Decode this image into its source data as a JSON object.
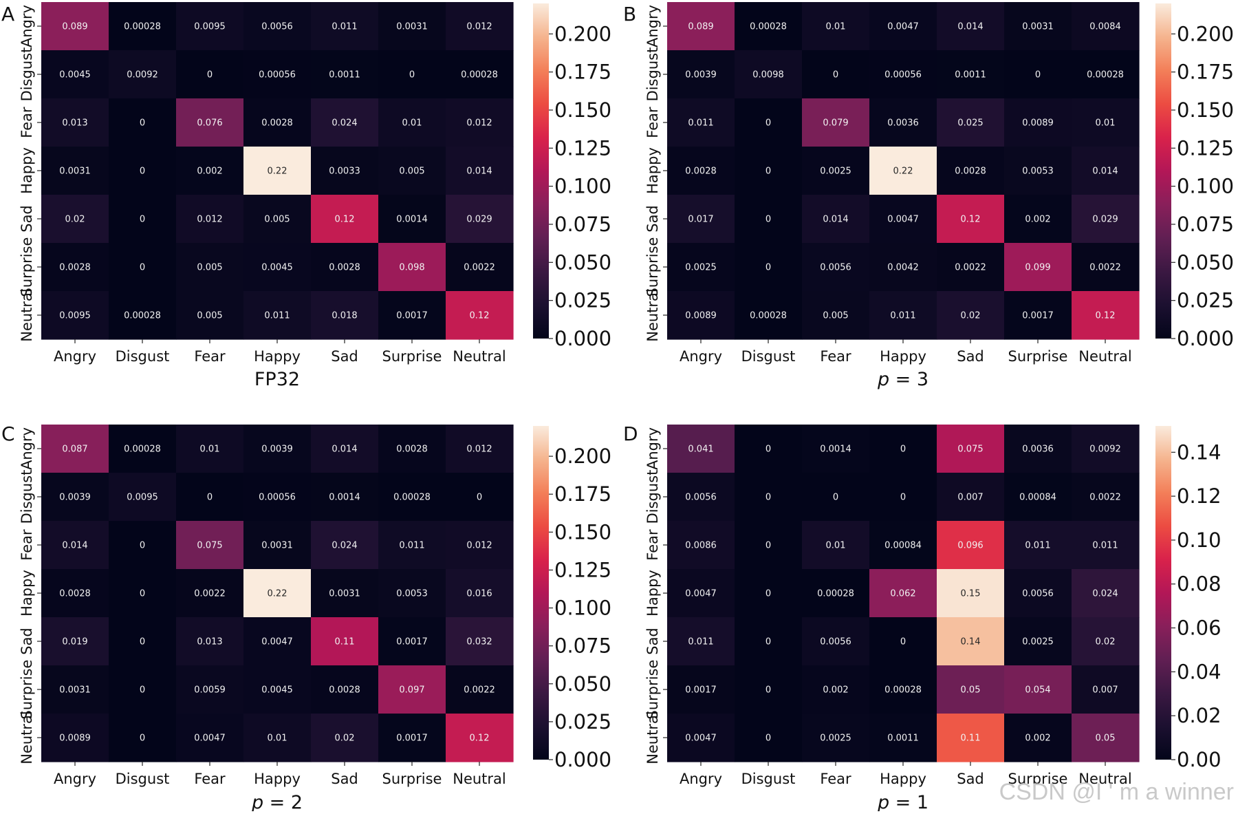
{
  "watermark": "CSDN @I ' m a winner",
  "chart_data": [
    {
      "panel": "A",
      "type": "heatmap",
      "title": "FP32",
      "xlabels": [
        "Angry",
        "Disgust",
        "Fear",
        "Happy",
        "Sad",
        "Surprise",
        "Neutral"
      ],
      "ylabels": [
        "Angry",
        "Disgust",
        "Fear",
        "Happy",
        "Sad",
        "Surprise",
        "Neutral"
      ],
      "values": [
        [
          0.089,
          0.00028,
          0.0095,
          0.0056,
          0.011,
          0.0031,
          0.012
        ],
        [
          0.0045,
          0.0092,
          0,
          0.00056,
          0.0011,
          0,
          0.00028
        ],
        [
          0.013,
          0,
          0.076,
          0.0028,
          0.024,
          0.01,
          0.012
        ],
        [
          0.0031,
          0,
          0.002,
          0.22,
          0.0033,
          0.005,
          0.014
        ],
        [
          0.02,
          0,
          0.012,
          0.005,
          0.12,
          0.0014,
          0.029
        ],
        [
          0.0028,
          0,
          0.005,
          0.0045,
          0.0028,
          0.098,
          0.0022
        ],
        [
          0.0095,
          0.00028,
          0.005,
          0.011,
          0.018,
          0.0017,
          0.12
        ]
      ],
      "labels": [
        [
          "0.089",
          "0.00028",
          "0.0095",
          "0.0056",
          "0.011",
          "0.0031",
          "0.012"
        ],
        [
          "0.0045",
          "0.0092",
          "0",
          "0.00056",
          "0.0011",
          "0",
          "0.00028"
        ],
        [
          "0.013",
          "0",
          "0.076",
          "0.0028",
          "0.024",
          "0.01",
          "0.012"
        ],
        [
          "0.0031",
          "0",
          "0.002",
          "0.22",
          "0.0033",
          "0.005",
          "0.014"
        ],
        [
          "0.02",
          "0",
          "0.012",
          "0.005",
          "0.12",
          "0.0014",
          "0.029"
        ],
        [
          "0.0028",
          "0",
          "0.005",
          "0.0045",
          "0.0028",
          "0.098",
          "0.0022"
        ],
        [
          "0.0095",
          "0.00028",
          "0.005",
          "0.011",
          "0.018",
          "0.0017",
          "0.12"
        ]
      ],
      "vmax": 0.22,
      "colorbar_ticks": [
        "0.000",
        "0.025",
        "0.050",
        "0.075",
        "0.100",
        "0.125",
        "0.150",
        "0.175",
        "0.200"
      ],
      "colorbar_tick_values": [
        0,
        0.025,
        0.05,
        0.075,
        0.1,
        0.125,
        0.15,
        0.175,
        0.2
      ]
    },
    {
      "panel": "B",
      "type": "heatmap",
      "title": "p = 3",
      "title_italic": "p",
      "title_rest": " = 3",
      "xlabels": [
        "Angry",
        "Disgust",
        "Fear",
        "Happy",
        "Sad",
        "Surprise",
        "Neutral"
      ],
      "ylabels": [
        "Angry",
        "Disgust",
        "Fear",
        "Happy",
        "Sad",
        "Surprise",
        "Neutral"
      ],
      "values": [
        [
          0.089,
          0.00028,
          0.01,
          0.0047,
          0.014,
          0.0031,
          0.0084
        ],
        [
          0.0039,
          0.0098,
          0,
          0.00056,
          0.0011,
          0,
          0.00028
        ],
        [
          0.011,
          0,
          0.079,
          0.0036,
          0.025,
          0.0089,
          0.01
        ],
        [
          0.0028,
          0,
          0.0025,
          0.22,
          0.0028,
          0.0053,
          0.014
        ],
        [
          0.017,
          0,
          0.014,
          0.0047,
          0.12,
          0.002,
          0.029
        ],
        [
          0.0025,
          0,
          0.0056,
          0.0042,
          0.0022,
          0.099,
          0.0022
        ],
        [
          0.0089,
          0.00028,
          0.005,
          0.011,
          0.02,
          0.0017,
          0.12
        ]
      ],
      "labels": [
        [
          "0.089",
          "0.00028",
          "0.01",
          "0.0047",
          "0.014",
          "0.0031",
          "0.0084"
        ],
        [
          "0.0039",
          "0.0098",
          "0",
          "0.00056",
          "0.0011",
          "0",
          "0.00028"
        ],
        [
          "0.011",
          "0",
          "0.079",
          "0.0036",
          "0.025",
          "0.0089",
          "0.01"
        ],
        [
          "0.0028",
          "0",
          "0.0025",
          "0.22",
          "0.0028",
          "0.0053",
          "0.014"
        ],
        [
          "0.017",
          "0",
          "0.014",
          "0.0047",
          "0.12",
          "0.002",
          "0.029"
        ],
        [
          "0.0025",
          "0",
          "0.0056",
          "0.0042",
          "0.0022",
          "0.099",
          "0.0022"
        ],
        [
          "0.0089",
          "0.00028",
          "0.005",
          "0.011",
          "0.02",
          "0.0017",
          "0.12"
        ]
      ],
      "vmax": 0.22,
      "colorbar_ticks": [
        "0.000",
        "0.025",
        "0.050",
        "0.075",
        "0.100",
        "0.125",
        "0.150",
        "0.175",
        "0.200"
      ],
      "colorbar_tick_values": [
        0,
        0.025,
        0.05,
        0.075,
        0.1,
        0.125,
        0.15,
        0.175,
        0.2
      ]
    },
    {
      "panel": "C",
      "type": "heatmap",
      "title": "p = 2",
      "title_italic": "p",
      "title_rest": " = 2",
      "xlabels": [
        "Angry",
        "Disgust",
        "Fear",
        "Happy",
        "Sad",
        "Surprise",
        "Neutral"
      ],
      "ylabels": [
        "Angry",
        "Disgust",
        "Fear",
        "Happy",
        "Sad",
        "Surprise",
        "Neutral"
      ],
      "values": [
        [
          0.087,
          0.00028,
          0.01,
          0.0039,
          0.014,
          0.0028,
          0.012
        ],
        [
          0.0039,
          0.0095,
          0,
          0.00056,
          0.0014,
          0.00028,
          0
        ],
        [
          0.014,
          0,
          0.075,
          0.0031,
          0.024,
          0.011,
          0.012
        ],
        [
          0.0028,
          0,
          0.0022,
          0.22,
          0.0031,
          0.0053,
          0.016
        ],
        [
          0.019,
          0,
          0.013,
          0.0047,
          0.11,
          0.0017,
          0.032
        ],
        [
          0.0031,
          0,
          0.0059,
          0.0045,
          0.0028,
          0.097,
          0.0022
        ],
        [
          0.0089,
          0,
          0.0047,
          0.01,
          0.02,
          0.0017,
          0.12
        ]
      ],
      "labels": [
        [
          "0.087",
          "0.00028",
          "0.01",
          "0.0039",
          "0.014",
          "0.0028",
          "0.012"
        ],
        [
          "0.0039",
          "0.0095",
          "0",
          "0.00056",
          "0.0014",
          "0.00028",
          "0"
        ],
        [
          "0.014",
          "0",
          "0.075",
          "0.0031",
          "0.024",
          "0.011",
          "0.012"
        ],
        [
          "0.0028",
          "0",
          "0.0022",
          "0.22",
          "0.0031",
          "0.0053",
          "0.016"
        ],
        [
          "0.019",
          "0",
          "0.013",
          "0.0047",
          "0.11",
          "0.0017",
          "0.032"
        ],
        [
          "0.0031",
          "0",
          "0.0059",
          "0.0045",
          "0.0028",
          "0.097",
          "0.0022"
        ],
        [
          "0.0089",
          "0",
          "0.0047",
          "0.01",
          "0.02",
          "0.0017",
          "0.12"
        ]
      ],
      "vmax": 0.22,
      "colorbar_ticks": [
        "0.000",
        "0.025",
        "0.050",
        "0.075",
        "0.100",
        "0.125",
        "0.150",
        "0.175",
        "0.200"
      ],
      "colorbar_tick_values": [
        0,
        0.025,
        0.05,
        0.075,
        0.1,
        0.125,
        0.15,
        0.175,
        0.2
      ]
    },
    {
      "panel": "D",
      "type": "heatmap",
      "title": "p = 1",
      "title_italic": "p",
      "title_rest": " = 1",
      "xlabels": [
        "Angry",
        "Disgust",
        "Fear",
        "Happy",
        "Sad",
        "Surprise",
        "Neutral"
      ],
      "ylabels": [
        "Angry",
        "Disgust",
        "Fear",
        "Happy",
        "Sad",
        "Surprise",
        "Neutral"
      ],
      "values": [
        [
          0.041,
          0,
          0.0014,
          0,
          0.075,
          0.0036,
          0.0092
        ],
        [
          0.0056,
          0,
          0,
          0,
          0.007,
          0.00084,
          0.0022
        ],
        [
          0.0086,
          0,
          0.01,
          0.00084,
          0.096,
          0.011,
          0.011
        ],
        [
          0.0047,
          0,
          0.00028,
          0.062,
          0.15,
          0.0056,
          0.024
        ],
        [
          0.011,
          0,
          0.0056,
          0,
          0.14,
          0.0025,
          0.02
        ],
        [
          0.0017,
          0,
          0.002,
          0.00028,
          0.05,
          0.054,
          0.007
        ],
        [
          0.0047,
          0,
          0.0025,
          0.0011,
          0.11,
          0.002,
          0.05
        ]
      ],
      "labels": [
        [
          "0.041",
          "0",
          "0.0014",
          "0",
          "0.075",
          "0.0036",
          "0.0092"
        ],
        [
          "0.0056",
          "0",
          "0",
          "0",
          "0.007",
          "0.00084",
          "0.0022"
        ],
        [
          "0.0086",
          "0",
          "0.01",
          "0.00084",
          "0.096",
          "0.011",
          "0.011"
        ],
        [
          "0.0047",
          "0",
          "0.00028",
          "0.062",
          "0.15",
          "0.0056",
          "0.024"
        ],
        [
          "0.011",
          "0",
          "0.0056",
          "0",
          "0.14",
          "0.0025",
          "0.02"
        ],
        [
          "0.0017",
          "0",
          "0.002",
          "0.00028",
          "0.05",
          "0.054",
          "0.007"
        ],
        [
          "0.0047",
          "0",
          "0.0025",
          "0.0011",
          "0.11",
          "0.002",
          "0.05"
        ]
      ],
      "vmax": 0.152,
      "colorbar_ticks": [
        "0.00",
        "0.02",
        "0.04",
        "0.06",
        "0.08",
        "0.10",
        "0.12",
        "0.14"
      ],
      "colorbar_tick_values": [
        0,
        0.02,
        0.04,
        0.06,
        0.08,
        0.1,
        0.12,
        0.14
      ]
    }
  ]
}
